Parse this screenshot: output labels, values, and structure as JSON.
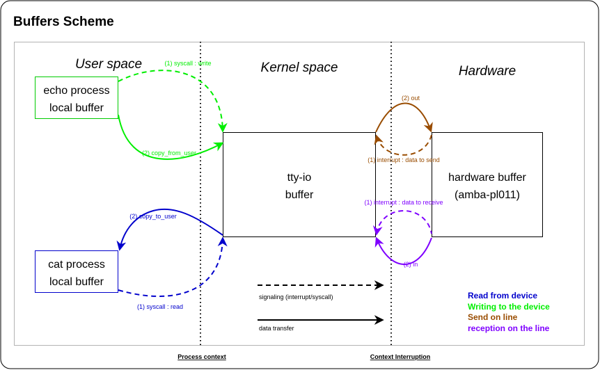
{
  "title": "Buffers Scheme",
  "regions": {
    "user": "User space",
    "kernel": "Kernel space",
    "hardware": "Hardware"
  },
  "boxes": {
    "echo": [
      "echo process",
      "local buffer"
    ],
    "cat": [
      "cat process",
      "local buffer"
    ],
    "tty": [
      "tty-io",
      "buffer"
    ],
    "hw": [
      "hardware buffer",
      "(amba-pl011)"
    ]
  },
  "arrows": {
    "syscall_write": "(1) syscall : write",
    "copy_from_user": "(2) copy_from_user",
    "copy_to_user": "(2) copy_to_user",
    "syscall_read": "(1) syscall : read",
    "out": "(2) out",
    "irq_send": "(1) interrupt : data to send",
    "irq_receive": "(1) interrupt : data to receive",
    "in": "(2) in"
  },
  "legend": {
    "signaling": "signaling (interrupt/syscall)",
    "transfer": "data transfer"
  },
  "color_legend": [
    {
      "label": "Read from device",
      "color": "#0000cc"
    },
    {
      "label": "Writing to the device",
      "color": "#00ee00"
    },
    {
      "label": "Send on line",
      "color": "#994c00"
    },
    {
      "label": "reception on the line",
      "color": "#7f00ff"
    }
  ],
  "contexts": {
    "process": "Process context",
    "interrupt": "Context Interruption"
  },
  "colors": {
    "write": "#00ee00",
    "read": "#0000cc",
    "send": "#994c00",
    "receive": "#7f00ff",
    "echo_border": "#00cc00",
    "cat_border": "#0000cc"
  }
}
